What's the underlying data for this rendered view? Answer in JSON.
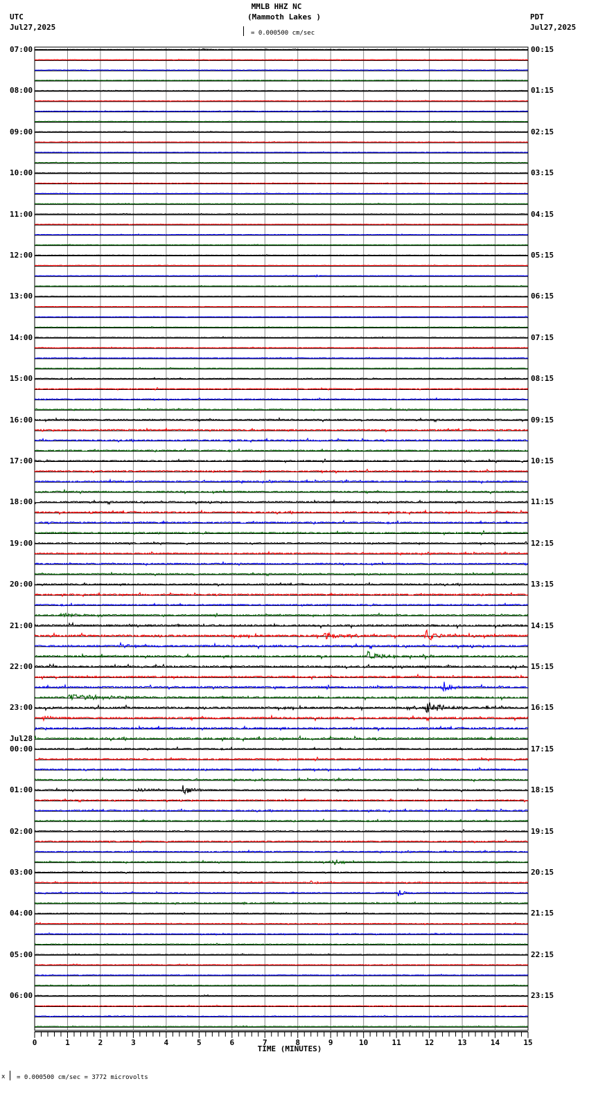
{
  "header": {
    "title": "MMLB HHZ NC",
    "subtitle": "(Mammoth Lakes )",
    "left_tz": "UTC",
    "left_date": "Jul27,2025",
    "right_tz": "PDT",
    "right_date": "Jul27,2025",
    "scale_text": "= 0.000500 cm/sec"
  },
  "footer": {
    "xlabel": "TIME (MINUTES)",
    "scale_note": "= 0.000500 cm/sec =    3772 microvolts",
    "scale_prefix": "x"
  },
  "chart_data": {
    "type": "line",
    "title": "MMLB HHZ NC (Mammoth Lakes )",
    "subtitle": "Helicorder 24-hour seismogram, 15 minutes per line",
    "xlabel": "TIME (MINUTES)",
    "ylabel_left": "UTC",
    "ylabel_right": "PDT",
    "xlim": [
      0,
      15
    ],
    "x_ticks": [
      0,
      1,
      2,
      3,
      4,
      5,
      6,
      7,
      8,
      9,
      10,
      11,
      12,
      13,
      14,
      15
    ],
    "x_minor_step": 0.2,
    "grid": "vertical lines every minute",
    "scale": "0.000500 cm/sec = 3772 microvolts",
    "trace_colors": [
      "#000000",
      "#ff0000",
      "#0000ff",
      "#006400"
    ],
    "left_labels": [
      {
        "row": 0,
        "text": "07:00"
      },
      {
        "row": 4,
        "text": "08:00"
      },
      {
        "row": 8,
        "text": "09:00"
      },
      {
        "row": 12,
        "text": "10:00"
      },
      {
        "row": 16,
        "text": "11:00"
      },
      {
        "row": 20,
        "text": "12:00"
      },
      {
        "row": 24,
        "text": "13:00"
      },
      {
        "row": 28,
        "text": "14:00"
      },
      {
        "row": 32,
        "text": "15:00"
      },
      {
        "row": 36,
        "text": "16:00"
      },
      {
        "row": 40,
        "text": "17:00"
      },
      {
        "row": 44,
        "text": "18:00"
      },
      {
        "row": 48,
        "text": "19:00"
      },
      {
        "row": 52,
        "text": "20:00"
      },
      {
        "row": 56,
        "text": "21:00"
      },
      {
        "row": 60,
        "text": "22:00"
      },
      {
        "row": 64,
        "text": "23:00"
      },
      {
        "row": 68,
        "text": "00:00",
        "date": "Jul28"
      },
      {
        "row": 72,
        "text": "01:00"
      },
      {
        "row": 76,
        "text": "02:00"
      },
      {
        "row": 80,
        "text": "03:00"
      },
      {
        "row": 84,
        "text": "04:00"
      },
      {
        "row": 88,
        "text": "05:00"
      },
      {
        "row": 92,
        "text": "06:00"
      }
    ],
    "right_labels": [
      {
        "row": 0,
        "text": "00:15"
      },
      {
        "row": 4,
        "text": "01:15"
      },
      {
        "row": 8,
        "text": "02:15"
      },
      {
        "row": 12,
        "text": "03:15"
      },
      {
        "row": 16,
        "text": "04:15"
      },
      {
        "row": 20,
        "text": "05:15"
      },
      {
        "row": 24,
        "text": "06:15"
      },
      {
        "row": 28,
        "text": "07:15"
      },
      {
        "row": 32,
        "text": "08:15"
      },
      {
        "row": 36,
        "text": "09:15"
      },
      {
        "row": 40,
        "text": "10:15"
      },
      {
        "row": 44,
        "text": "11:15"
      },
      {
        "row": 48,
        "text": "12:15"
      },
      {
        "row": 52,
        "text": "13:15"
      },
      {
        "row": 56,
        "text": "14:15"
      },
      {
        "row": 60,
        "text": "15:15"
      },
      {
        "row": 64,
        "text": "16:15"
      },
      {
        "row": 68,
        "text": "17:15"
      },
      {
        "row": 72,
        "text": "18:15"
      },
      {
        "row": 76,
        "text": "19:15"
      },
      {
        "row": 80,
        "text": "20:15"
      },
      {
        "row": 84,
        "text": "21:15"
      },
      {
        "row": 88,
        "text": "22:15"
      },
      {
        "row": 92,
        "text": "23:15"
      }
    ],
    "rows": 96,
    "noise_by_hour": [
      0.3,
      0.3,
      0.3,
      0.3,
      0.3,
      0.3,
      0.3,
      0.4,
      0.6,
      0.9,
      0.9,
      1.0,
      0.8,
      0.9,
      1.2,
      1.1,
      1.2,
      0.9,
      0.8,
      0.7,
      0.6,
      0.5,
      0.4,
      0.4
    ],
    "events": [
      {
        "row": 0,
        "t": 5.1,
        "amp": 1.5,
        "dur": 0.6
      },
      {
        "row": 22,
        "t": 8.55,
        "amp": 2.5,
        "dur": 0.3
      },
      {
        "row": 45,
        "t": 1.7,
        "amp": 2.0,
        "dur": 0.5
      },
      {
        "row": 55,
        "t": 0.8,
        "amp": 3.0,
        "dur": 1.2
      },
      {
        "row": 57,
        "t": 8.8,
        "amp": 7.0,
        "dur": 0.8
      },
      {
        "row": 57,
        "t": 11.9,
        "amp": 9.0,
        "dur": 0.8
      },
      {
        "row": 57,
        "t": 13.2,
        "amp": 4.0,
        "dur": 0.4
      },
      {
        "row": 58,
        "t": 2.6,
        "amp": 5.0,
        "dur": 0.5
      },
      {
        "row": 59,
        "t": 10.1,
        "amp": 8.0,
        "dur": 0.7
      },
      {
        "row": 62,
        "t": 12.4,
        "amp": 9.0,
        "dur": 0.5
      },
      {
        "row": 63,
        "t": 1.0,
        "amp": 4.0,
        "dur": 3.5
      },
      {
        "row": 64,
        "t": 11.9,
        "amp": 8.0,
        "dur": 1.5
      },
      {
        "row": 65,
        "t": 0.3,
        "amp": 4.0,
        "dur": 0.3
      },
      {
        "row": 72,
        "t": 3.1,
        "amp": 4.0,
        "dur": 0.6
      },
      {
        "row": 72,
        "t": 4.5,
        "amp": 8.0,
        "dur": 0.6
      },
      {
        "row": 79,
        "t": 9.0,
        "amp": 7.0,
        "dur": 0.5
      },
      {
        "row": 81,
        "t": 8.4,
        "amp": 3.0,
        "dur": 0.5
      },
      {
        "row": 82,
        "t": 11.05,
        "amp": 6.0,
        "dur": 0.4
      },
      {
        "row": 83,
        "t": 6.3,
        "amp": 2.0,
        "dur": 0.4
      }
    ]
  }
}
